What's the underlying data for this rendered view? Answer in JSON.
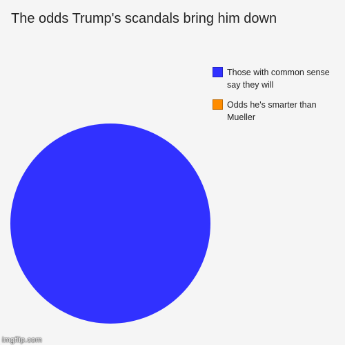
{
  "chart_data": {
    "type": "pie",
    "title": "The odds Trump's scandals bring him down",
    "series": [
      {
        "name": "Those with common sense say they will",
        "value": 100,
        "color": "#3131ff"
      },
      {
        "name": "Odds he's smarter than Mueller",
        "value": 0,
        "color": "#ff8c00"
      }
    ],
    "legend_position": "top-right"
  },
  "watermark": {
    "text": "imgflip.com"
  }
}
